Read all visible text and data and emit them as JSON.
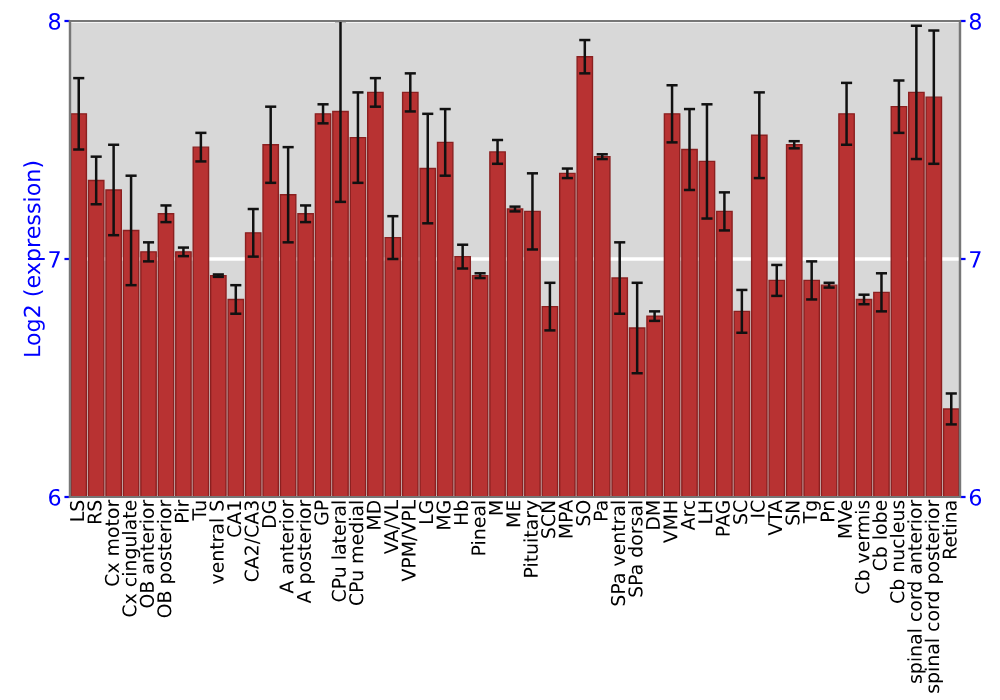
{
  "chart_data": {
    "type": "bar",
    "ylabel": "Log2 (expression)",
    "categories": [
      "LS",
      "RS",
      "Cx motor",
      "Cx cingulate",
      "OB anterior",
      "OB posterior",
      "Pir",
      "Tu",
      "ventral S",
      "CA1",
      "CA2/CA3",
      "DG",
      "A anterior",
      "A posterior",
      "GP",
      "CPu lateral",
      "CPu medial",
      "MD",
      "VA/VL",
      "VPM/VPL",
      "LG",
      "MG",
      "Hb",
      "Pineal",
      "M",
      "ME",
      "Pituitary",
      "SCN",
      "MPA",
      "SO",
      "Pa",
      "SPa ventral",
      "SPa dorsal",
      "DM",
      "VMH",
      "Arc",
      "LH",
      "PAG",
      "SC",
      "IC",
      "VTA",
      "SN",
      "Tg",
      "Pn",
      "MVe",
      "Cb vermis",
      "Cb lobe",
      "Cb nucleus",
      "spinal cord anterior",
      "spinal cord posterior",
      "Retina"
    ],
    "values": [
      7.61,
      7.33,
      7.29,
      7.12,
      7.03,
      7.19,
      7.03,
      7.47,
      6.93,
      6.83,
      7.11,
      7.48,
      7.27,
      7.19,
      7.61,
      7.62,
      7.51,
      7.7,
      7.09,
      7.7,
      7.38,
      7.49,
      7.01,
      6.93,
      7.45,
      7.21,
      7.2,
      6.8,
      7.36,
      7.85,
      7.43,
      6.92,
      6.71,
      6.76,
      7.61,
      7.46,
      7.41,
      7.2,
      6.78,
      7.52,
      6.91,
      7.48,
      6.91,
      6.89,
      7.61,
      6.83,
      6.86,
      7.64,
      7.7,
      7.68,
      6.37
    ],
    "errors": [
      0.15,
      0.1,
      0.19,
      0.23,
      0.04,
      0.035,
      0.018,
      0.06,
      0.005,
      0.06,
      0.1,
      0.16,
      0.2,
      0.035,
      0.04,
      0.38,
      0.19,
      0.06,
      0.09,
      0.08,
      0.23,
      0.14,
      0.05,
      0.01,
      0.05,
      0.01,
      0.16,
      0.1,
      0.02,
      0.07,
      0.01,
      0.15,
      0.19,
      0.02,
      0.12,
      0.17,
      0.24,
      0.08,
      0.09,
      0.18,
      0.065,
      0.015,
      0.08,
      0.01,
      0.13,
      0.02,
      0.08,
      0.11,
      0.28,
      0.28,
      0.065
    ],
    "color": "#b83232",
    "ylim": [
      6,
      8
    ],
    "yticks": [
      6,
      7,
      8
    ],
    "y2lim": [
      6,
      8
    ],
    "y2ticks": [
      6,
      7,
      8
    ],
    "grid": "y"
  }
}
